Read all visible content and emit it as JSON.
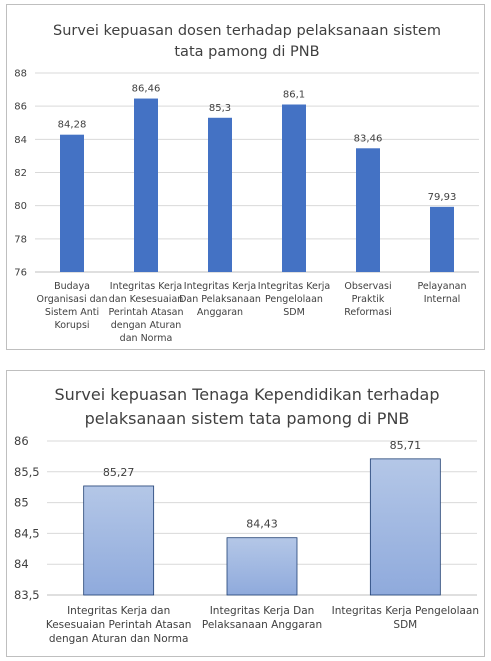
{
  "chart_data": [
    {
      "type": "bar",
      "title_lines": [
        "Survei kepuasan dosen terhadap pelaksanaan sistem",
        "tata pamong di PNB"
      ],
      "categories": [
        [
          "Budaya",
          "Organisasi dan",
          "Sistem Anti",
          "Korupsi"
        ],
        [
          "Integritas Kerja",
          "dan Kesesuaian",
          "Perintah Atasan",
          "dengan Aturan",
          "dan Norma"
        ],
        [
          "Integritas Kerja",
          "Dan Pelaksanaan",
          "Anggaran"
        ],
        [
          "Integritas Kerja",
          "Pengelolaan",
          "SDM"
        ],
        [
          "Observasi",
          "Praktik",
          "Reformasi"
        ],
        [
          "Pelayanan",
          "Internal"
        ]
      ],
      "values": [
        84.28,
        86.46,
        85.3,
        86.1,
        83.46,
        79.93
      ],
      "value_labels": [
        "84,28",
        "86,46",
        "85,3",
        "86,1",
        "83,46",
        "79,93"
      ],
      "ylim": [
        76,
        88
      ],
      "yticks": [
        76,
        78,
        80,
        82,
        84,
        86,
        88
      ],
      "ytick_labels": [
        "76",
        "78",
        "80",
        "82",
        "84",
        "86",
        "88"
      ],
      "grid": true,
      "bar_color": "#4472c4"
    },
    {
      "type": "bar",
      "title_lines": [
        "Survei kepuasan Tenaga Kependidikan terhadap",
        "pelaksanaan sistem tata pamong di PNB"
      ],
      "categories": [
        [
          "Integritas Kerja dan",
          "Kesesuaian Perintah Atasan",
          "dengan Aturan dan Norma"
        ],
        [
          "Integritas Kerja Dan",
          "Pelaksanaan Anggaran"
        ],
        [
          "Integritas Kerja Pengelolaan",
          "SDM"
        ]
      ],
      "values": [
        85.27,
        84.43,
        85.71
      ],
      "value_labels": [
        "85,27",
        "84,43",
        "85,71"
      ],
      "ylim": [
        83.5,
        86
      ],
      "yticks": [
        83.5,
        84,
        84.5,
        85,
        85.5,
        86
      ],
      "ytick_labels": [
        "83,5",
        "84",
        "84,5",
        "85",
        "85,5",
        "86"
      ],
      "grid": true,
      "bar_color_top": "#b4c7e7",
      "bar_color_bottom": "#8faadc",
      "bar_border": "#1f3f73"
    }
  ]
}
